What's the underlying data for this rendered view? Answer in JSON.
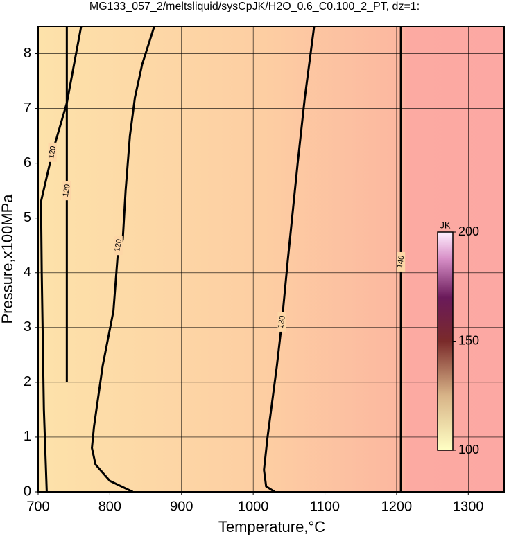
{
  "chart_data": {
    "type": "contour",
    "title": "MG133_057_2/meltsliquid/sysCpJK/H2O_0.6_C0.100_2_PT, dz=1:",
    "x_label": "Temperature,°C",
    "y_label": "Pressure,x100MPa",
    "xlim": [
      700,
      1350
    ],
    "ylim": [
      0,
      8.5
    ],
    "xticks": [
      700,
      800,
      900,
      1000,
      1100,
      1200,
      1300
    ],
    "yticks": [
      0,
      1,
      2,
      3,
      4,
      5,
      6,
      7,
      8
    ],
    "grid": true,
    "contours": [
      {
        "level": 120,
        "color": "#000000",
        "x": [
          712,
          708,
          705,
          704,
          720,
          740,
          750,
          760
        ],
        "y": [
          0,
          1.5,
          4,
          5.3,
          6.2,
          7.1,
          7.8,
          8.5
        ]
      },
      {
        "level": 120,
        "color": "#000000",
        "x": [
          740,
          740,
          740
        ],
        "y": [
          2.0,
          5.5,
          8.5
        ]
      },
      {
        "level": 120,
        "color": "#000000",
        "x": [
          832,
          800,
          780,
          775,
          778,
          790,
          805,
          812,
          818,
          822,
          828,
          835,
          845,
          862
        ],
        "y": [
          0,
          0.2,
          0.5,
          0.8,
          1.2,
          2.3,
          3.3,
          4.5,
          4.6,
          5.5,
          6.5,
          7.2,
          7.8,
          8.5
        ]
      },
      {
        "level": 130,
        "color": "#000000",
        "x": [
          1030,
          1018,
          1015,
          1020,
          1025,
          1033,
          1040,
          1048,
          1055,
          1062,
          1072,
          1085
        ],
        "y": [
          0,
          0.1,
          0.4,
          1.0,
          1.5,
          2.3,
          3.1,
          4.2,
          5.1,
          6.0,
          7.2,
          8.5
        ]
      },
      {
        "level": 140,
        "color": "#000000",
        "x": [
          1206,
          1206,
          1206
        ],
        "y": [
          0,
          4.2,
          8.5
        ]
      }
    ],
    "colorbar": {
      "label": "JK",
      "lim": [
        100,
        200
      ],
      "ticks": [
        100,
        150,
        200
      ]
    }
  }
}
